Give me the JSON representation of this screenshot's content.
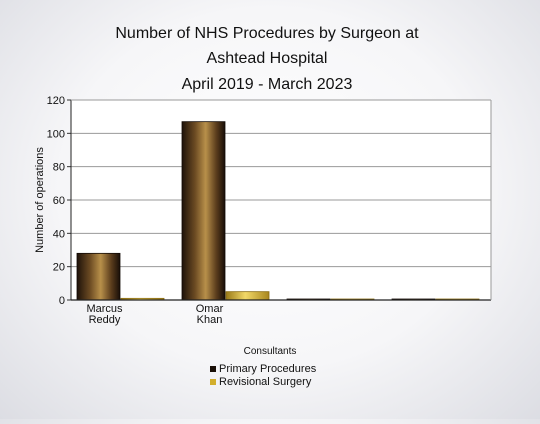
{
  "chart_data": {
    "type": "bar",
    "title_lines": [
      "Number of NHS Procedures by Surgeon at",
      "Ashtead Hospital",
      "April 2019 - March 2023"
    ],
    "xlabel": "Consultants",
    "ylabel": "Number of operations",
    "ylim": [
      0,
      120
    ],
    "yticks": [
      0,
      20,
      40,
      60,
      80,
      100,
      120
    ],
    "categories": [
      [
        "Marcus",
        "Reddy"
      ],
      [
        "Omar",
        "Khan"
      ],
      [
        "",
        ""
      ],
      [
        "",
        ""
      ]
    ],
    "series": [
      {
        "name": "Primary Procedures",
        "values": [
          28,
          107,
          0.4,
          0.4
        ],
        "color": "#3a2414"
      },
      {
        "name": "Revisional Surgery",
        "values": [
          1,
          5,
          0.4,
          0.4
        ],
        "color": "#d4b03a"
      }
    ],
    "grid": true,
    "legend_position": "bottom-center"
  }
}
